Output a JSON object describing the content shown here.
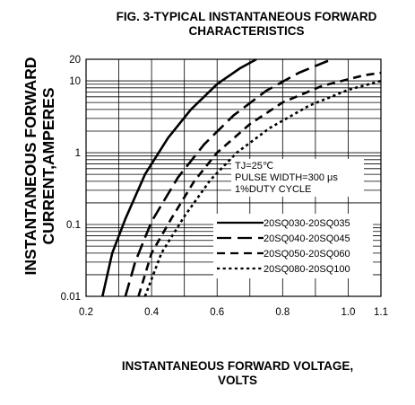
{
  "chart_data": {
    "type": "line",
    "title": [
      "FIG. 3-TYPICAL INSTANTANEOUS FORWARD",
      "CHARACTERISTICS"
    ],
    "xlabel": [
      "INSTANTANEOUS FORWARD VOLTAGE,",
      "VOLTS"
    ],
    "ylabel": [
      "INSTANTANEOUS FORWARD",
      "CURRENT,AMPERES"
    ],
    "xlim": [
      0.2,
      1.1
    ],
    "ylim": [
      0.01,
      20
    ],
    "yscale": "log",
    "grid": true,
    "x_ticks": [
      0.2,
      0.4,
      0.6,
      0.8,
      1.0,
      1.1
    ],
    "x_tick_labels": [
      "0.2",
      "0.4",
      "0.6",
      "0.8",
      "1.0",
      "1.1"
    ],
    "y_ticks": [
      0.01,
      0.1,
      1,
      10,
      20
    ],
    "y_tick_labels": [
      "0.01",
      "0.1",
      "1",
      "10",
      "20"
    ],
    "annotation": [
      "TJ=25℃",
      "PULSE WIDTH=300 μs",
      "1%DUTY CYCLE"
    ],
    "legend_position": "lower-right",
    "series": [
      {
        "name": "20SQ030-20SQ035",
        "dash": "solid",
        "x": [
          0.25,
          0.28,
          0.32,
          0.38,
          0.45,
          0.52,
          0.6,
          0.67,
          0.72
        ],
        "y": [
          0.01,
          0.04,
          0.12,
          0.5,
          1.6,
          4.0,
          9.0,
          15.0,
          20.0
        ]
      },
      {
        "name": "20SQ040-20SQ045",
        "dash": "long-dash",
        "x": [
          0.32,
          0.35,
          0.4,
          0.48,
          0.56,
          0.65,
          0.75,
          0.85,
          0.95
        ],
        "y": [
          0.01,
          0.03,
          0.11,
          0.45,
          1.3,
          3.3,
          7.3,
          13.0,
          20.0
        ]
      },
      {
        "name": "20SQ050-20SQ060",
        "dash": "dash",
        "x": [
          0.36,
          0.4,
          0.46,
          0.53,
          0.6,
          0.7,
          0.8,
          0.92,
          1.05,
          1.1
        ],
        "y": [
          0.01,
          0.04,
          0.12,
          0.4,
          1.0,
          2.5,
          5.0,
          8.5,
          12.0,
          13.0
        ]
      },
      {
        "name": "20SQ080-20SQ100",
        "dash": "dot",
        "x": [
          0.38,
          0.43,
          0.5,
          0.58,
          0.66,
          0.76,
          0.88,
          1.0,
          1.1
        ],
        "y": [
          0.01,
          0.04,
          0.13,
          0.42,
          1.0,
          2.2,
          4.5,
          7.5,
          10.0
        ]
      }
    ]
  }
}
